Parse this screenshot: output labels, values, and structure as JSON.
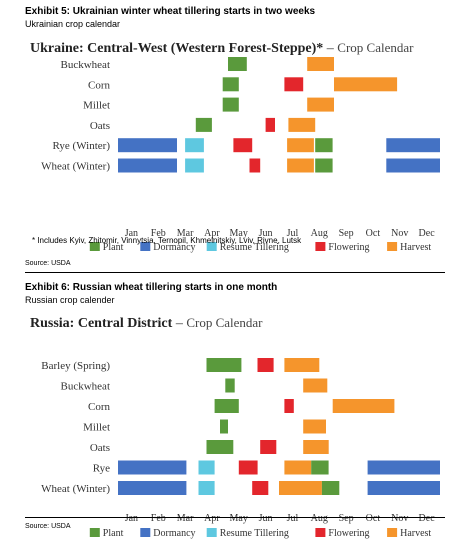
{
  "exhibits": [
    {
      "title": "Exhibit 5: Ukrainian winter wheat tillering starts in two weeks",
      "subtitle": "Ukrainian crop calendar",
      "note": "* Includes Kyiv, Zhitomir, Vinnytsia, Ternopil, Khmelnitskiy, Lviv, Rivne, Lutsk",
      "source": "Source: USDA"
    },
    {
      "title": "Exhibit 6: Russian wheat tillering starts in one month",
      "subtitle": "Russian crop calender",
      "source": "Source: USDA"
    }
  ],
  "colors": {
    "Plant": "#5a9a3c",
    "Dormancy": "#4472c4",
    "Resume Tillering": "#5ec8e0",
    "Flowering": "#e3262c",
    "Harvest": "#f5952c"
  },
  "chart_data": [
    {
      "type": "gantt",
      "title_bold": "Ukraine: Central-West (Western Forest-Steppe)*",
      "title_dash": " – ",
      "title_rest": "Crop Calendar",
      "months": [
        "Jan",
        "Feb",
        "Mar",
        "Apr",
        "May",
        "Jun",
        "Jul",
        "Aug",
        "Sep",
        "Oct",
        "Nov",
        "Dec"
      ],
      "xlim": [
        1,
        13
      ],
      "legend": [
        "Plant",
        "Dormancy",
        "Resume Tillering",
        "Flowering",
        "Harvest"
      ],
      "crops": [
        {
          "name": "Buckwheat",
          "bars": [
            {
              "stage": "Plant",
              "start": 5.1,
              "end": 5.8
            },
            {
              "stage": "Harvest",
              "start": 8.05,
              "end": 9.05
            }
          ]
        },
        {
          "name": "Corn",
          "bars": [
            {
              "stage": "Plant",
              "start": 4.9,
              "end": 5.5
            },
            {
              "stage": "Flowering",
              "start": 7.2,
              "end": 7.9
            },
            {
              "stage": "Harvest",
              "start": 9.05,
              "end": 11.4
            }
          ]
        },
        {
          "name": "Millet",
          "bars": [
            {
              "stage": "Plant",
              "start": 4.9,
              "end": 5.5
            },
            {
              "stage": "Harvest",
              "start": 8.05,
              "end": 9.05
            }
          ]
        },
        {
          "name": "Oats",
          "bars": [
            {
              "stage": "Plant",
              "start": 3.9,
              "end": 4.5
            },
            {
              "stage": "Flowering",
              "start": 6.5,
              "end": 6.85
            },
            {
              "stage": "Harvest",
              "start": 7.35,
              "end": 8.35
            }
          ]
        },
        {
          "name": "Rye (Winter)",
          "bars": [
            {
              "stage": "Dormancy",
              "start": 1.0,
              "end": 3.2
            },
            {
              "stage": "Resume Tillering",
              "start": 3.5,
              "end": 4.2
            },
            {
              "stage": "Flowering",
              "start": 5.3,
              "end": 6.0
            },
            {
              "stage": "Harvest",
              "start": 7.3,
              "end": 8.3
            },
            {
              "stage": "Plant",
              "start": 8.35,
              "end": 9.0
            },
            {
              "stage": "Dormancy",
              "start": 11.0,
              "end": 13.0
            }
          ]
        },
        {
          "name": "Wheat (Winter)",
          "bars": [
            {
              "stage": "Dormancy",
              "start": 1.0,
              "end": 3.2
            },
            {
              "stage": "Resume Tillering",
              "start": 3.5,
              "end": 4.2
            },
            {
              "stage": "Flowering",
              "start": 5.9,
              "end": 6.3
            },
            {
              "stage": "Harvest",
              "start": 7.3,
              "end": 8.3
            },
            {
              "stage": "Plant",
              "start": 8.35,
              "end": 9.0
            },
            {
              "stage": "Dormancy",
              "start": 11.0,
              "end": 13.0
            }
          ]
        }
      ]
    },
    {
      "type": "gantt",
      "title_bold": "Russia: Central District",
      "title_dash": " – ",
      "title_rest": "Crop Calendar",
      "months": [
        "Jan",
        "Feb",
        "Mar",
        "Apr",
        "May",
        "Jun",
        "Jul",
        "Aug",
        "Sep",
        "Oct",
        "Nov",
        "Dec"
      ],
      "xlim": [
        1,
        13
      ],
      "legend": [
        "Plant",
        "Dormancy",
        "Resume Tillering",
        "Flowering",
        "Harvest"
      ],
      "crops": [
        {
          "name": "Barley (Spring)",
          "bars": [
            {
              "stage": "Plant",
              "start": 4.3,
              "end": 5.6
            },
            {
              "stage": "Flowering",
              "start": 6.2,
              "end": 6.8
            },
            {
              "stage": "Harvest",
              "start": 7.2,
              "end": 8.5
            }
          ]
        },
        {
          "name": "Buckwheat",
          "bars": [
            {
              "stage": "Plant",
              "start": 5.0,
              "end": 5.35
            },
            {
              "stage": "Harvest",
              "start": 7.9,
              "end": 8.8
            }
          ]
        },
        {
          "name": "Corn",
          "bars": [
            {
              "stage": "Plant",
              "start": 4.6,
              "end": 5.5
            },
            {
              "stage": "Flowering",
              "start": 7.2,
              "end": 7.55
            },
            {
              "stage": "Harvest",
              "start": 9.0,
              "end": 11.3
            }
          ]
        },
        {
          "name": "Millet",
          "bars": [
            {
              "stage": "Plant",
              "start": 4.8,
              "end": 5.1
            },
            {
              "stage": "Harvest",
              "start": 7.9,
              "end": 8.75
            }
          ]
        },
        {
          "name": "Oats",
          "bars": [
            {
              "stage": "Plant",
              "start": 4.3,
              "end": 5.3
            },
            {
              "stage": "Flowering",
              "start": 6.3,
              "end": 6.9
            },
            {
              "stage": "Harvest",
              "start": 7.9,
              "end": 8.85
            }
          ]
        },
        {
          "name": "Rye",
          "bars": [
            {
              "stage": "Dormancy",
              "start": 1.0,
              "end": 3.55
            },
            {
              "stage": "Resume Tillering",
              "start": 4.0,
              "end": 4.6
            },
            {
              "stage": "Flowering",
              "start": 5.5,
              "end": 6.2
            },
            {
              "stage": "Harvest",
              "start": 7.2,
              "end": 8.2
            },
            {
              "stage": "Plant",
              "start": 8.2,
              "end": 8.85
            },
            {
              "stage": "Dormancy",
              "start": 10.3,
              "end": 13.0
            }
          ]
        },
        {
          "name": "Wheat (Winter)",
          "bars": [
            {
              "stage": "Dormancy",
              "start": 1.0,
              "end": 3.55
            },
            {
              "stage": "Resume Tillering",
              "start": 4.0,
              "end": 4.6
            },
            {
              "stage": "Flowering",
              "start": 6.0,
              "end": 6.6
            },
            {
              "stage": "Harvest",
              "start": 7.0,
              "end": 8.6
            },
            {
              "stage": "Plant",
              "start": 8.6,
              "end": 9.25
            },
            {
              "stage": "Dormancy",
              "start": 10.3,
              "end": 13.0
            }
          ]
        }
      ]
    }
  ]
}
